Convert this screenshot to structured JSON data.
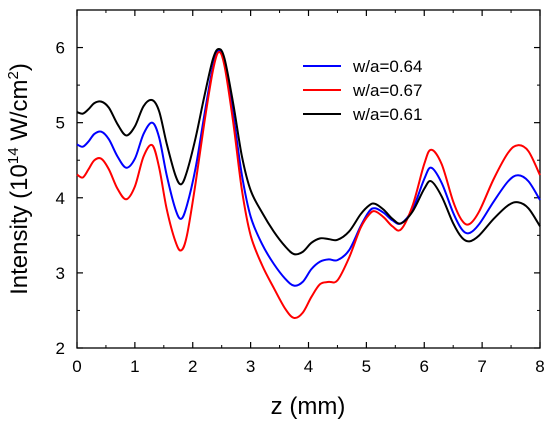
{
  "chart_data": {
    "type": "line",
    "xlabel": "z (mm)",
    "ylabel_parts": {
      "prefix": "Intensity (10",
      "exp1": "14",
      "middle": " W/cm",
      "exp2": "2",
      "suffix": ")"
    },
    "xlim": [
      0,
      8
    ],
    "ylim": [
      2,
      6.5
    ],
    "xticks": [
      "0",
      "1",
      "2",
      "3",
      "4",
      "5",
      "6",
      "7",
      "8"
    ],
    "yticks": [
      "2",
      "3",
      "4",
      "5",
      "6"
    ],
    "grid": false,
    "legend_position": "top-right",
    "series": [
      {
        "name": "w/a=0.64",
        "color": "#0000ff",
        "points": [
          [
            0.0,
            4.71
          ],
          [
            0.1,
            4.68
          ],
          [
            0.2,
            4.75
          ],
          [
            0.3,
            4.85
          ],
          [
            0.42,
            4.88
          ],
          [
            0.55,
            4.78
          ],
          [
            0.7,
            4.55
          ],
          [
            0.85,
            4.4
          ],
          [
            1.0,
            4.52
          ],
          [
            1.15,
            4.85
          ],
          [
            1.3,
            5.0
          ],
          [
            1.42,
            4.8
          ],
          [
            1.55,
            4.3
          ],
          [
            1.7,
            3.85
          ],
          [
            1.8,
            3.72
          ],
          [
            1.9,
            3.9
          ],
          [
            2.05,
            4.4
          ],
          [
            2.2,
            5.1
          ],
          [
            2.35,
            5.75
          ],
          [
            2.45,
            5.96
          ],
          [
            2.55,
            5.8
          ],
          [
            2.7,
            5.1
          ],
          [
            2.85,
            4.3
          ],
          [
            3.0,
            3.75
          ],
          [
            3.2,
            3.38
          ],
          [
            3.4,
            3.12
          ],
          [
            3.6,
            2.92
          ],
          [
            3.75,
            2.83
          ],
          [
            3.9,
            2.88
          ],
          [
            4.05,
            3.05
          ],
          [
            4.2,
            3.15
          ],
          [
            4.35,
            3.18
          ],
          [
            4.5,
            3.17
          ],
          [
            4.7,
            3.3
          ],
          [
            4.9,
            3.62
          ],
          [
            5.05,
            3.82
          ],
          [
            5.15,
            3.86
          ],
          [
            5.3,
            3.8
          ],
          [
            5.45,
            3.7
          ],
          [
            5.6,
            3.66
          ],
          [
            5.8,
            3.85
          ],
          [
            6.0,
            4.25
          ],
          [
            6.12,
            4.4
          ],
          [
            6.3,
            4.2
          ],
          [
            6.5,
            3.8
          ],
          [
            6.65,
            3.58
          ],
          [
            6.78,
            3.53
          ],
          [
            6.95,
            3.65
          ],
          [
            7.2,
            3.95
          ],
          [
            7.45,
            4.22
          ],
          [
            7.62,
            4.3
          ],
          [
            7.8,
            4.22
          ],
          [
            8.0,
            3.97
          ]
        ]
      },
      {
        "name": "w/a=0.67",
        "color": "#ff0000",
        "points": [
          [
            0.0,
            4.31
          ],
          [
            0.1,
            4.27
          ],
          [
            0.2,
            4.38
          ],
          [
            0.3,
            4.5
          ],
          [
            0.42,
            4.52
          ],
          [
            0.55,
            4.38
          ],
          [
            0.7,
            4.12
          ],
          [
            0.85,
            3.98
          ],
          [
            1.0,
            4.15
          ],
          [
            1.15,
            4.55
          ],
          [
            1.3,
            4.7
          ],
          [
            1.42,
            4.4
          ],
          [
            1.55,
            3.85
          ],
          [
            1.7,
            3.42
          ],
          [
            1.8,
            3.3
          ],
          [
            1.9,
            3.5
          ],
          [
            2.05,
            4.2
          ],
          [
            2.2,
            5.0
          ],
          [
            2.35,
            5.7
          ],
          [
            2.45,
            5.94
          ],
          [
            2.55,
            5.75
          ],
          [
            2.7,
            5.0
          ],
          [
            2.85,
            4.1
          ],
          [
            3.0,
            3.5
          ],
          [
            3.2,
            3.1
          ],
          [
            3.4,
            2.8
          ],
          [
            3.6,
            2.52
          ],
          [
            3.75,
            2.4
          ],
          [
            3.9,
            2.47
          ],
          [
            4.05,
            2.68
          ],
          [
            4.2,
            2.85
          ],
          [
            4.35,
            2.88
          ],
          [
            4.5,
            2.9
          ],
          [
            4.7,
            3.2
          ],
          [
            4.9,
            3.6
          ],
          [
            5.05,
            3.78
          ],
          [
            5.15,
            3.82
          ],
          [
            5.3,
            3.74
          ],
          [
            5.45,
            3.62
          ],
          [
            5.6,
            3.58
          ],
          [
            5.8,
            3.9
          ],
          [
            6.0,
            4.45
          ],
          [
            6.12,
            4.64
          ],
          [
            6.3,
            4.45
          ],
          [
            6.5,
            3.95
          ],
          [
            6.65,
            3.7
          ],
          [
            6.78,
            3.65
          ],
          [
            6.95,
            3.82
          ],
          [
            7.2,
            4.25
          ],
          [
            7.45,
            4.6
          ],
          [
            7.62,
            4.7
          ],
          [
            7.8,
            4.62
          ],
          [
            8.0,
            4.3
          ]
        ]
      },
      {
        "name": "w/a=0.61",
        "color": "#000000",
        "points": [
          [
            0.0,
            5.14
          ],
          [
            0.1,
            5.12
          ],
          [
            0.2,
            5.18
          ],
          [
            0.3,
            5.26
          ],
          [
            0.42,
            5.28
          ],
          [
            0.55,
            5.2
          ],
          [
            0.7,
            4.98
          ],
          [
            0.85,
            4.83
          ],
          [
            1.0,
            4.95
          ],
          [
            1.15,
            5.22
          ],
          [
            1.3,
            5.3
          ],
          [
            1.42,
            5.15
          ],
          [
            1.55,
            4.72
          ],
          [
            1.7,
            4.3
          ],
          [
            1.8,
            4.18
          ],
          [
            1.9,
            4.35
          ],
          [
            2.05,
            4.8
          ],
          [
            2.2,
            5.35
          ],
          [
            2.35,
            5.85
          ],
          [
            2.45,
            5.98
          ],
          [
            2.55,
            5.85
          ],
          [
            2.7,
            5.25
          ],
          [
            2.85,
            4.55
          ],
          [
            3.0,
            4.1
          ],
          [
            3.2,
            3.8
          ],
          [
            3.4,
            3.55
          ],
          [
            3.6,
            3.35
          ],
          [
            3.75,
            3.25
          ],
          [
            3.9,
            3.28
          ],
          [
            4.05,
            3.4
          ],
          [
            4.2,
            3.46
          ],
          [
            4.35,
            3.45
          ],
          [
            4.5,
            3.44
          ],
          [
            4.7,
            3.55
          ],
          [
            4.9,
            3.78
          ],
          [
            5.05,
            3.9
          ],
          [
            5.15,
            3.92
          ],
          [
            5.3,
            3.84
          ],
          [
            5.45,
            3.72
          ],
          [
            5.6,
            3.66
          ],
          [
            5.8,
            3.82
          ],
          [
            6.0,
            4.12
          ],
          [
            6.12,
            4.22
          ],
          [
            6.3,
            4.02
          ],
          [
            6.5,
            3.66
          ],
          [
            6.65,
            3.47
          ],
          [
            6.78,
            3.42
          ],
          [
            6.95,
            3.5
          ],
          [
            7.2,
            3.72
          ],
          [
            7.45,
            3.9
          ],
          [
            7.62,
            3.94
          ],
          [
            7.8,
            3.86
          ],
          [
            8.0,
            3.62
          ]
        ]
      }
    ]
  }
}
